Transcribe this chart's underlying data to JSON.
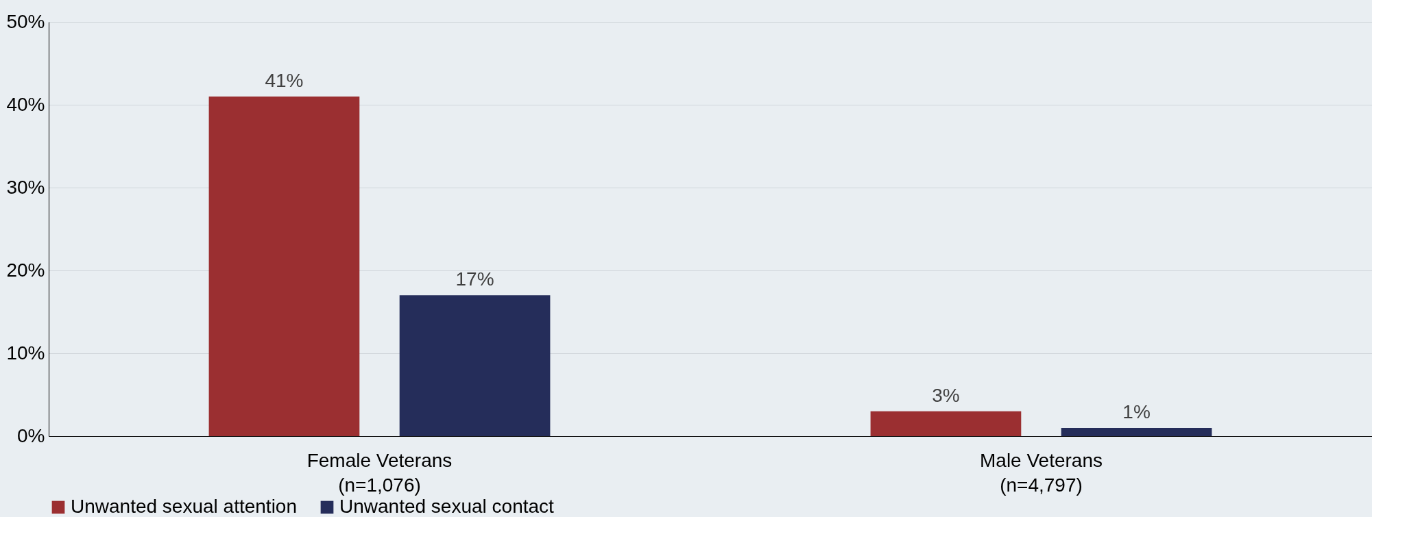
{
  "chart_data": {
    "type": "bar",
    "categories": [
      "Female Veterans\n(n=1,076)",
      "Male Veterans\n(n=4,797)"
    ],
    "series": [
      {
        "name": "Unwanted sexual attention",
        "color": "#9b2f31",
        "values": [
          41,
          3
        ],
        "value_labels": [
          "41%",
          "3%"
        ]
      },
      {
        "name": "Unwanted sexual contact",
        "color": "#252d5a",
        "values": [
          17,
          1
        ],
        "value_labels": [
          "17%",
          "1%"
        ]
      }
    ],
    "ylim": [
      0,
      50
    ],
    "yticks": [
      {
        "value": 0,
        "label": "0%"
      },
      {
        "value": 10,
        "label": "10%"
      },
      {
        "value": 20,
        "label": "20%"
      },
      {
        "value": 30,
        "label": "30%"
      },
      {
        "value": 40,
        "label": "40%"
      },
      {
        "value": 50,
        "label": "50%"
      }
    ],
    "grid": "y",
    "legend": "bottom"
  }
}
